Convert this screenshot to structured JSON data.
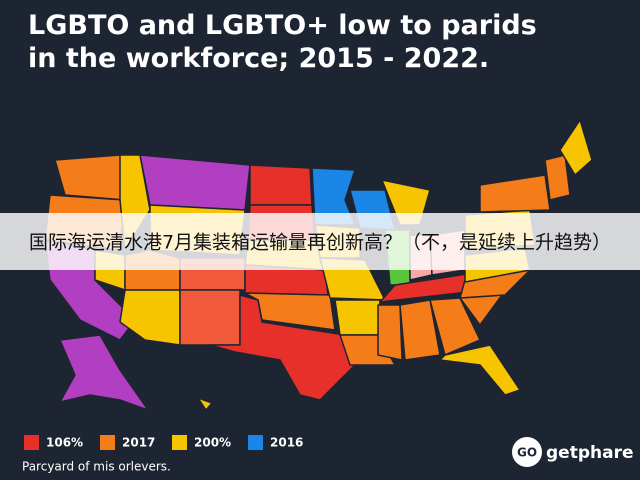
{
  "header": {
    "title_line1": "LGBTO and LGBTO+ low to parids",
    "title_line2": "in the workforce; 2015 - 2022."
  },
  "banner": {
    "text": "国际海运清水港7月集装箱运输量再创新高？（不，是延续上升趋势）"
  },
  "legend": {
    "items": [
      {
        "label": "106%",
        "color": "#e8302a"
      },
      {
        "label": "2017",
        "color": "#f47d1a"
      },
      {
        "label": "200%",
        "color": "#f7c400"
      },
      {
        "label": "2016",
        "color": "#1c86e6"
      }
    ]
  },
  "footnote": "Parcyard of mis orlevers.",
  "logo": {
    "badge": "GO",
    "text": "getphare"
  }
}
